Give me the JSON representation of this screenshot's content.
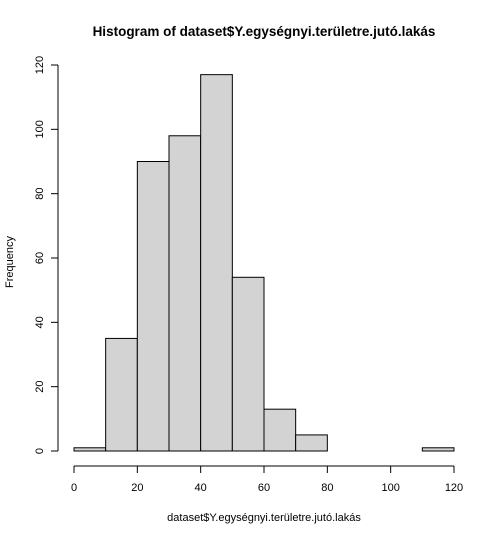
{
  "chart_data": {
    "type": "bar",
    "title": "Histogram of dataset$Y.egységnyi.területre.jutó.lakás",
    "xlabel": "dataset$Y.egységnyi.területre.jutó.lakás",
    "ylabel": "Frequency",
    "bin_edges": [
      0,
      10,
      20,
      30,
      40,
      50,
      60,
      70,
      80,
      90,
      100,
      110,
      120
    ],
    "values": [
      1,
      35,
      90,
      98,
      117,
      54,
      13,
      5,
      0,
      0,
      0,
      1
    ],
    "xlim": [
      0,
      120
    ],
    "ylim": [
      0,
      120
    ],
    "x_ticks": [
      0,
      20,
      40,
      60,
      80,
      100,
      120
    ],
    "y_ticks": [
      0,
      20,
      40,
      60,
      80,
      100,
      120
    ],
    "grid": false,
    "bar_fill": "#d3d3d3",
    "bar_stroke": "#000000"
  }
}
